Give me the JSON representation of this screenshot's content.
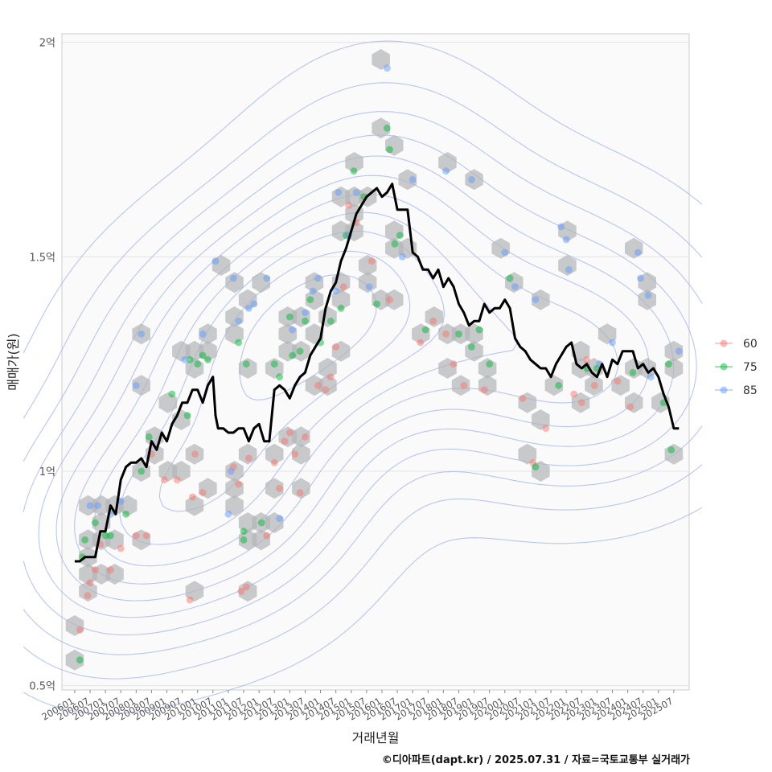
{
  "chart_data": {
    "type": "scatter",
    "title": "",
    "xlabel": "거래년월",
    "ylabel": "매매가(원)",
    "caption": "©디아파트(dapt.kr) / 2025.07.31 / 자료=국토교통부 실거래가",
    "y_range": [
      0.49,
      2.02
    ],
    "y_ticks": [
      {
        "value": 0.5,
        "label": "0.5억"
      },
      {
        "value": 1.0,
        "label": "1억"
      },
      {
        "value": 1.5,
        "label": "1.5억"
      },
      {
        "value": 2.0,
        "label": "2억"
      }
    ],
    "x_range_months": [
      -5,
      240
    ],
    "x_ticks": [
      "200601",
      "200607",
      "200701",
      "200707",
      "200801",
      "200807",
      "200901",
      "200907",
      "201001",
      "201007",
      "201101",
      "201107",
      "201201",
      "201207",
      "201301",
      "201307",
      "201401",
      "201407",
      "201501",
      "201507",
      "201601",
      "201607",
      "201701",
      "201707",
      "201801",
      "201807",
      "201901",
      "201907",
      "202001",
      "202007",
      "202101",
      "202107",
      "202201",
      "202207",
      "202301",
      "202307",
      "202401",
      "202407",
      "202501",
      "202507"
    ],
    "legend": {
      "title": "",
      "placement": "right",
      "entries": [
        {
          "label": "60",
          "color": "#f8766d"
        },
        {
          "label": "75",
          "color": "#00ba38"
        },
        {
          "label": "85",
          "color": "#619cff"
        }
      ]
    },
    "series": [
      {
        "name": "60",
        "color": "#f8766d",
        "points": [
          [
            2,
            0.63
          ],
          [
            5,
            0.71
          ],
          [
            8,
            0.77
          ],
          [
            6,
            0.74
          ],
          [
            10,
            0.83
          ],
          [
            14,
            0.77
          ],
          [
            18,
            0.82
          ],
          [
            24,
            0.85
          ],
          [
            28,
            0.85
          ],
          [
            30,
            1.04
          ],
          [
            35,
            0.98
          ],
          [
            40,
            0.98
          ],
          [
            45,
            0.7
          ],
          [
            46,
            0.94
          ],
          [
            47,
            1.04
          ],
          [
            50,
            0.95
          ],
          [
            62,
            1.01
          ],
          [
            64,
            0.97
          ],
          [
            65,
            0.72
          ],
          [
            67,
            0.73
          ],
          [
            68,
            1.03
          ],
          [
            75,
            0.85
          ],
          [
            78,
            1.02
          ],
          [
            80,
            0.96
          ],
          [
            82,
            1.07
          ],
          [
            84,
            1.09
          ],
          [
            86,
            1.04
          ],
          [
            88,
            0.95
          ],
          [
            90,
            1.08
          ],
          [
            95,
            1.2
          ],
          [
            98,
            1.19
          ],
          [
            100,
            1.22
          ],
          [
            102,
            1.29
          ],
          [
            105,
            1.43
          ],
          [
            107,
            1.62
          ],
          [
            110,
            1.58
          ],
          [
            116,
            1.49
          ],
          [
            123,
            1.4
          ],
          [
            135,
            1.3
          ],
          [
            140,
            1.35
          ],
          [
            145,
            1.32
          ],
          [
            148,
            1.25
          ],
          [
            152,
            1.2
          ],
          [
            160,
            1.19
          ],
          [
            175,
            1.17
          ],
          [
            179,
            1.02
          ],
          [
            184,
            1.1
          ],
          [
            195,
            1.18
          ],
          [
            198,
            1.16
          ],
          [
            200,
            1.26
          ],
          [
            203,
            1.2
          ],
          [
            212,
            1.21
          ],
          [
            217,
            1.15
          ]
        ]
      },
      {
        "name": "75",
        "color": "#00ba38",
        "points": [
          [
            2,
            0.56
          ],
          [
            3,
            0.8
          ],
          [
            4,
            0.84
          ],
          [
            8,
            0.88
          ],
          [
            12,
            0.85
          ],
          [
            14,
            0.85
          ],
          [
            20,
            0.9
          ],
          [
            26,
            1.0
          ],
          [
            29,
            1.08
          ],
          [
            38,
            1.18
          ],
          [
            44,
            1.13
          ],
          [
            45,
            1.26
          ],
          [
            48,
            1.25
          ],
          [
            50,
            1.27
          ],
          [
            52,
            1.26
          ],
          [
            64,
            1.3
          ],
          [
            66,
            0.84
          ],
          [
            66,
            0.86
          ],
          [
            67,
            1.25
          ],
          [
            73,
            0.88
          ],
          [
            78,
            1.25
          ],
          [
            80,
            1.22
          ],
          [
            84,
            1.36
          ],
          [
            85,
            1.27
          ],
          [
            88,
            1.28
          ],
          [
            90,
            1.35
          ],
          [
            92,
            1.4
          ],
          [
            96,
            1.3
          ],
          [
            100,
            1.35
          ],
          [
            104,
            1.38
          ],
          [
            106,
            1.55
          ],
          [
            109,
            1.7
          ],
          [
            113,
            1.64
          ],
          [
            118,
            1.39
          ],
          [
            122,
            1.8
          ],
          [
            123,
            1.75
          ],
          [
            125,
            1.53
          ],
          [
            127,
            1.55
          ],
          [
            137,
            1.33
          ],
          [
            150,
            1.32
          ],
          [
            155,
            1.29
          ],
          [
            158,
            1.33
          ],
          [
            162,
            1.25
          ],
          [
            170,
            1.45
          ],
          [
            180,
            1.01
          ],
          [
            189,
            1.2
          ],
          [
            200,
            1.24
          ],
          [
            204,
            1.24
          ],
          [
            218,
            1.23
          ],
          [
            230,
            1.16
          ],
          [
            232,
            1.25
          ],
          [
            233,
            1.05
          ]
        ]
      },
      {
        "name": "85",
        "color": "#619cff",
        "points": [
          [
            6,
            0.92
          ],
          [
            9,
            0.92
          ],
          [
            14,
            0.9
          ],
          [
            18,
            0.93
          ],
          [
            24,
            1.2
          ],
          [
            26,
            1.32
          ],
          [
            43,
            1.26
          ],
          [
            50,
            1.32
          ],
          [
            55,
            1.49
          ],
          [
            60,
            0.9
          ],
          [
            61,
            1.0
          ],
          [
            62,
            1.45
          ],
          [
            64,
            1.35
          ],
          [
            68,
            1.38
          ],
          [
            70,
            1.39
          ],
          [
            75,
            1.45
          ],
          [
            80,
            0.89
          ],
          [
            85,
            1.33
          ],
          [
            90,
            1.37
          ],
          [
            93,
            1.42
          ],
          [
            95,
            1.45
          ],
          [
            102,
            1.42
          ],
          [
            103,
            1.65
          ],
          [
            107,
            1.55
          ],
          [
            110,
            1.65
          ],
          [
            115,
            1.43
          ],
          [
            122,
            1.94
          ],
          [
            128,
            1.5
          ],
          [
            132,
            1.68
          ],
          [
            145,
            1.7
          ],
          [
            155,
            1.68
          ],
          [
            168,
            1.51
          ],
          [
            172,
            1.43
          ],
          [
            180,
            1.4
          ],
          [
            190,
            1.57
          ],
          [
            192,
            1.54
          ],
          [
            193,
            1.47
          ],
          [
            205,
            1.25
          ],
          [
            210,
            1.3
          ],
          [
            220,
            1.51
          ],
          [
            221,
            1.45
          ],
          [
            224,
            1.41
          ],
          [
            225,
            1.22
          ],
          [
            236,
            1.28
          ]
        ]
      },
      {
        "name": "rolling median",
        "color": "#000000",
        "points": [
          [
            0,
            0.79
          ],
          [
            2,
            0.79
          ],
          [
            4,
            0.8
          ],
          [
            8,
            0.8
          ],
          [
            10,
            0.86
          ],
          [
            12,
            0.86
          ],
          [
            14,
            0.92
          ],
          [
            16,
            0.9
          ],
          [
            18,
            0.98
          ],
          [
            20,
            1.01
          ],
          [
            22,
            1.02
          ],
          [
            24,
            1.02
          ],
          [
            26,
            1.03
          ],
          [
            28,
            1.01
          ],
          [
            30,
            1.07
          ],
          [
            32,
            1.05
          ],
          [
            34,
            1.09
          ],
          [
            36,
            1.07
          ],
          [
            38,
            1.11
          ],
          [
            40,
            1.13
          ],
          [
            42,
            1.16
          ],
          [
            44,
            1.16
          ],
          [
            46,
            1.19
          ],
          [
            48,
            1.19
          ],
          [
            50,
            1.16
          ],
          [
            52,
            1.2
          ],
          [
            54,
            1.22
          ],
          [
            55,
            1.13
          ],
          [
            56,
            1.1
          ],
          [
            58,
            1.1
          ],
          [
            60,
            1.09
          ],
          [
            62,
            1.09
          ],
          [
            64,
            1.1
          ],
          [
            66,
            1.1
          ],
          [
            68,
            1.07
          ],
          [
            70,
            1.1
          ],
          [
            72,
            1.11
          ],
          [
            74,
            1.07
          ],
          [
            76,
            1.07
          ],
          [
            78,
            1.19
          ],
          [
            80,
            1.2
          ],
          [
            82,
            1.19
          ],
          [
            84,
            1.17
          ],
          [
            86,
            1.2
          ],
          [
            88,
            1.22
          ],
          [
            90,
            1.23
          ],
          [
            92,
            1.27
          ],
          [
            94,
            1.29
          ],
          [
            96,
            1.31
          ],
          [
            98,
            1.38
          ],
          [
            100,
            1.42
          ],
          [
            102,
            1.44
          ],
          [
            104,
            1.49
          ],
          [
            106,
            1.52
          ],
          [
            108,
            1.56
          ],
          [
            110,
            1.6
          ],
          [
            112,
            1.62
          ],
          [
            114,
            1.64
          ],
          [
            116,
            1.65
          ],
          [
            118,
            1.66
          ],
          [
            120,
            1.64
          ],
          [
            122,
            1.65
          ],
          [
            124,
            1.67
          ],
          [
            126,
            1.61
          ],
          [
            128,
            1.61
          ],
          [
            130,
            1.61
          ],
          [
            132,
            1.51
          ],
          [
            134,
            1.5
          ],
          [
            136,
            1.47
          ],
          [
            138,
            1.47
          ],
          [
            140,
            1.45
          ],
          [
            142,
            1.47
          ],
          [
            144,
            1.43
          ],
          [
            146,
            1.45
          ],
          [
            148,
            1.43
          ],
          [
            150,
            1.39
          ],
          [
            152,
            1.37
          ],
          [
            154,
            1.34
          ],
          [
            156,
            1.35
          ],
          [
            158,
            1.35
          ],
          [
            160,
            1.39
          ],
          [
            162,
            1.37
          ],
          [
            164,
            1.38
          ],
          [
            166,
            1.38
          ],
          [
            168,
            1.4
          ],
          [
            170,
            1.38
          ],
          [
            172,
            1.31
          ],
          [
            174,
            1.29
          ],
          [
            176,
            1.28
          ],
          [
            178,
            1.26
          ],
          [
            180,
            1.25
          ],
          [
            182,
            1.24
          ],
          [
            184,
            1.24
          ],
          [
            186,
            1.22
          ],
          [
            188,
            1.25
          ],
          [
            190,
            1.27
          ],
          [
            192,
            1.29
          ],
          [
            194,
            1.3
          ],
          [
            196,
            1.25
          ],
          [
            198,
            1.24
          ],
          [
            200,
            1.25
          ],
          [
            202,
            1.23
          ],
          [
            204,
            1.22
          ],
          [
            206,
            1.25
          ],
          [
            208,
            1.22
          ],
          [
            210,
            1.26
          ],
          [
            212,
            1.25
          ],
          [
            214,
            1.28
          ],
          [
            216,
            1.28
          ],
          [
            218,
            1.28
          ],
          [
            220,
            1.24
          ],
          [
            222,
            1.25
          ],
          [
            224,
            1.23
          ],
          [
            226,
            1.24
          ],
          [
            228,
            1.22
          ],
          [
            230,
            1.18
          ],
          [
            232,
            1.15
          ],
          [
            234,
            1.1
          ],
          [
            236,
            1.1
          ]
        ]
      }
    ]
  }
}
